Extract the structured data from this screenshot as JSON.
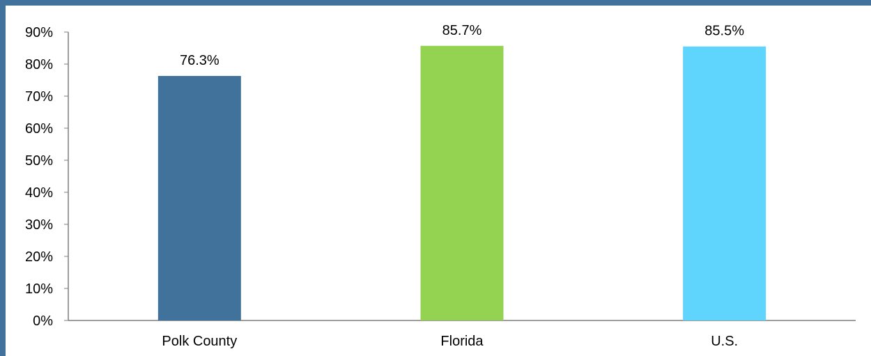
{
  "chart_data": {
    "type": "bar",
    "title": "",
    "xlabel": "",
    "ylabel": "",
    "categories": [
      "Polk County",
      "Florida",
      "U.S."
    ],
    "values": [
      76.3,
      85.7,
      85.5
    ],
    "value_labels": [
      "76.3%",
      "85.7%",
      "85.5%"
    ],
    "colors": [
      "#41729c",
      "#94d352",
      "#5fd5fe"
    ],
    "ylim": [
      0,
      90
    ],
    "yticks": [
      0,
      10,
      20,
      30,
      40,
      50,
      60,
      70,
      80,
      90
    ],
    "ytick_labels": [
      "0%",
      "10%",
      "20%",
      "30%",
      "40%",
      "50%",
      "60%",
      "70%",
      "80%",
      "90%"
    ],
    "grid": false,
    "legend": "none"
  },
  "frame": {
    "border_color": "#41729c"
  }
}
